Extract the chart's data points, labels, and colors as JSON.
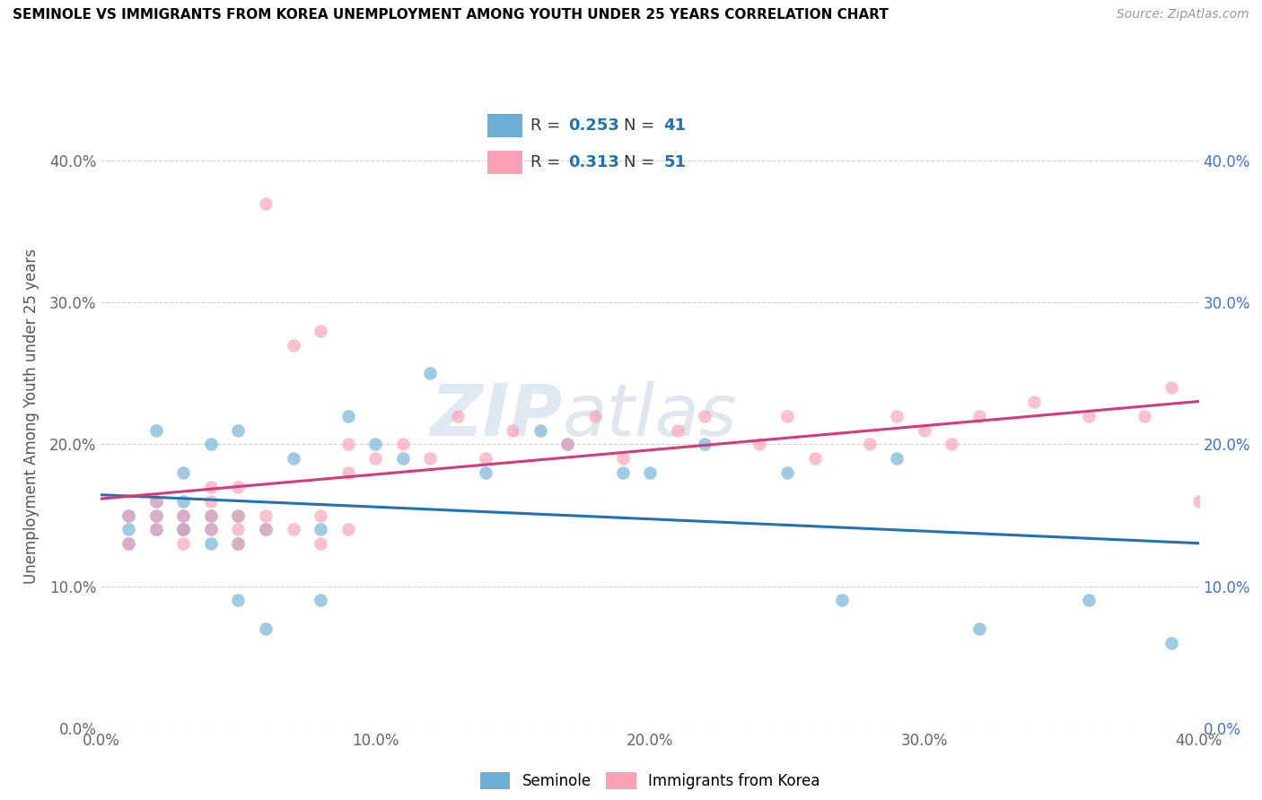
{
  "title": "SEMINOLE VS IMMIGRANTS FROM KOREA UNEMPLOYMENT AMONG YOUTH UNDER 25 YEARS CORRELATION CHART",
  "source": "Source: ZipAtlas.com",
  "ylabel": "Unemployment Among Youth under 25 years",
  "legend_labels": [
    "Seminole",
    "Immigrants from Korea"
  ],
  "R_seminole": 0.253,
  "N_seminole": 41,
  "R_korea": 0.313,
  "N_korea": 51,
  "xlim": [
    0.0,
    0.4
  ],
  "ylim": [
    0.0,
    0.44
  ],
  "yticks": [
    0.0,
    0.1,
    0.2,
    0.3,
    0.4
  ],
  "xticks": [
    0.0,
    0.1,
    0.2,
    0.3,
    0.4
  ],
  "color_seminole": "#6baed6",
  "color_korea": "#fa9fb5",
  "line_color_seminole": "#2171b5",
  "line_color_korea": "#d63a7a",
  "watermark_zip": "ZIP",
  "watermark_atlas": "atlas",
  "seminole_x": [
    0.01,
    0.01,
    0.01,
    0.02,
    0.02,
    0.02,
    0.02,
    0.03,
    0.03,
    0.03,
    0.03,
    0.03,
    0.04,
    0.04,
    0.04,
    0.04,
    0.05,
    0.05,
    0.05,
    0.05,
    0.06,
    0.06,
    0.07,
    0.08,
    0.08,
    0.09,
    0.1,
    0.11,
    0.12,
    0.14,
    0.16,
    0.17,
    0.19,
    0.2,
    0.22,
    0.25,
    0.27,
    0.29,
    0.32,
    0.36,
    0.39
  ],
  "seminole_y": [
    0.13,
    0.14,
    0.15,
    0.14,
    0.15,
    0.16,
    0.21,
    0.14,
    0.14,
    0.15,
    0.16,
    0.18,
    0.13,
    0.14,
    0.15,
    0.2,
    0.09,
    0.13,
    0.15,
    0.21,
    0.07,
    0.14,
    0.19,
    0.09,
    0.14,
    0.22,
    0.2,
    0.19,
    0.25,
    0.18,
    0.21,
    0.2,
    0.18,
    0.18,
    0.2,
    0.18,
    0.09,
    0.19,
    0.07,
    0.09,
    0.06
  ],
  "korea_x": [
    0.01,
    0.01,
    0.02,
    0.02,
    0.02,
    0.03,
    0.03,
    0.03,
    0.04,
    0.04,
    0.04,
    0.04,
    0.05,
    0.05,
    0.05,
    0.05,
    0.06,
    0.06,
    0.06,
    0.07,
    0.07,
    0.08,
    0.08,
    0.08,
    0.09,
    0.09,
    0.09,
    0.1,
    0.11,
    0.12,
    0.13,
    0.14,
    0.15,
    0.17,
    0.18,
    0.19,
    0.21,
    0.22,
    0.24,
    0.25,
    0.26,
    0.28,
    0.29,
    0.3,
    0.31,
    0.32,
    0.34,
    0.36,
    0.38,
    0.39,
    0.4
  ],
  "korea_y": [
    0.13,
    0.15,
    0.14,
    0.15,
    0.16,
    0.13,
    0.14,
    0.15,
    0.14,
    0.15,
    0.16,
    0.17,
    0.13,
    0.14,
    0.15,
    0.17,
    0.14,
    0.15,
    0.37,
    0.14,
    0.27,
    0.13,
    0.15,
    0.28,
    0.14,
    0.18,
    0.2,
    0.19,
    0.2,
    0.19,
    0.22,
    0.19,
    0.21,
    0.2,
    0.22,
    0.19,
    0.21,
    0.22,
    0.2,
    0.22,
    0.19,
    0.2,
    0.22,
    0.21,
    0.2,
    0.22,
    0.23,
    0.22,
    0.22,
    0.24,
    0.16
  ]
}
